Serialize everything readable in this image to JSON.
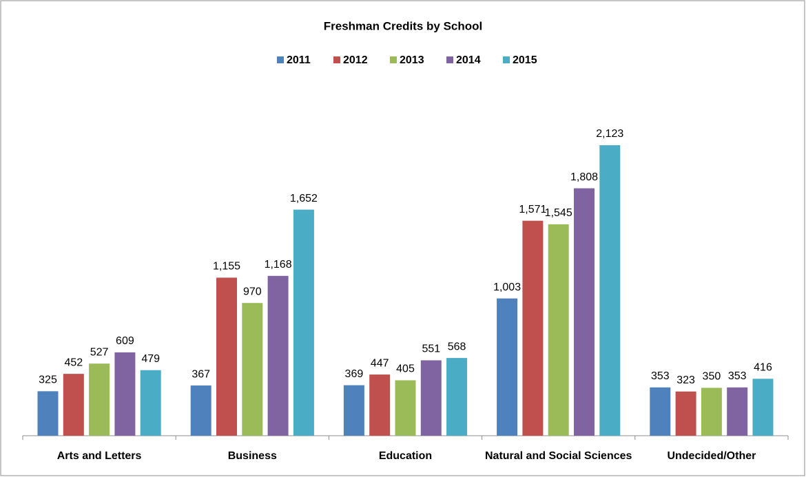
{
  "chart_data": {
    "type": "bar",
    "title": "Freshman Credits by School",
    "categories": [
      "Arts and Letters",
      "Business",
      "Education",
      "Natural and Social Sciences",
      "Undecided/Other"
    ],
    "series": [
      {
        "name": "2011",
        "color": "#4f81bd",
        "values": [
          325,
          367,
          369,
          1003,
          353
        ],
        "value_labels": [
          "325",
          "367",
          "369",
          "1,003",
          "353"
        ]
      },
      {
        "name": "2012",
        "color": "#c0504d",
        "values": [
          452,
          1155,
          447,
          1571,
          323
        ],
        "value_labels": [
          "452",
          "1,155",
          "447",
          "1,571",
          "323"
        ]
      },
      {
        "name": "2013",
        "color": "#9bbb59",
        "values": [
          527,
          970,
          405,
          1545,
          350
        ],
        "value_labels": [
          "527",
          "970",
          "405",
          "1,545",
          "350"
        ]
      },
      {
        "name": "2014",
        "color": "#8064a2",
        "values": [
          609,
          1168,
          551,
          1808,
          353
        ],
        "value_labels": [
          "609",
          "1,168",
          "551",
          "1,808",
          "353"
        ]
      },
      {
        "name": "2015",
        "color": "#4bacc6",
        "values": [
          479,
          1652,
          568,
          2123,
          416
        ],
        "value_labels": [
          "479",
          "1,652",
          "568",
          "2,123",
          "416"
        ]
      }
    ],
    "ylim": [
      0,
      2500
    ],
    "legend": "top"
  }
}
